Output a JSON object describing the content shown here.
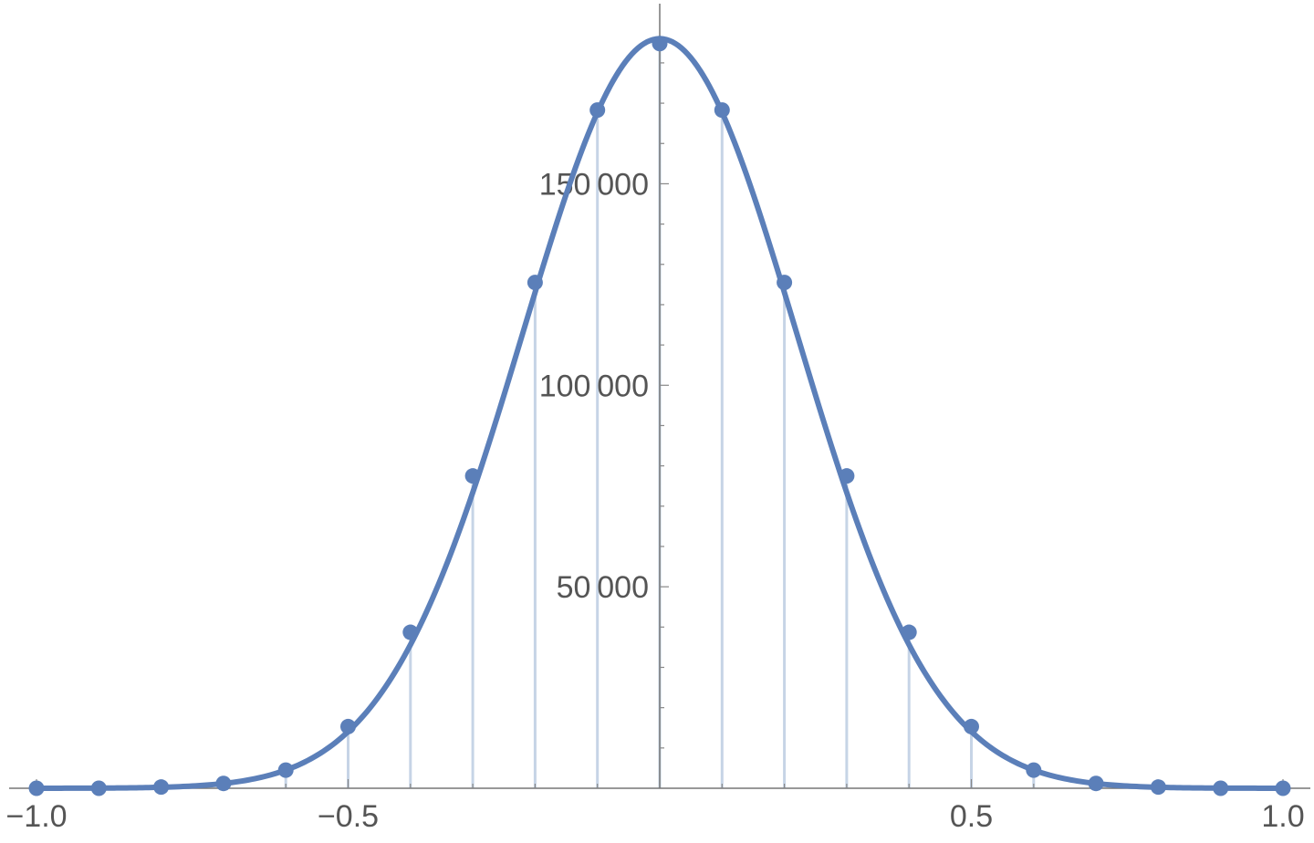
{
  "chart_data": {
    "type": "scatter",
    "title": "",
    "xlabel": "",
    "ylabel": "",
    "xlim": [
      -1.0,
      1.0
    ],
    "ylim": [
      0,
      187000
    ],
    "grid": false,
    "legend": "none",
    "x_ticks": [
      {
        "value": -1.0,
        "label": "−1.0"
      },
      {
        "value": -0.5,
        "label": "−0.5"
      },
      {
        "value": 0.5,
        "label": "0.5"
      },
      {
        "value": 1.0,
        "label": "1.0"
      }
    ],
    "y_ticks": [
      {
        "value": 50000,
        "label": "50 000"
      },
      {
        "value": 100000,
        "label": "100 000"
      },
      {
        "value": 150000,
        "label": "150 000"
      }
    ],
    "color": "#5b7fb9",
    "stem_color": "#c6d4e6",
    "points": {
      "x": [
        -1.0,
        -0.9,
        -0.8,
        -0.7,
        -0.6,
        -0.5,
        -0.4,
        -0.3,
        -0.2,
        -0.1,
        0.0,
        0.1,
        0.2,
        0.3,
        0.4,
        0.5,
        0.6,
        0.7,
        0.8,
        0.9,
        1.0
      ],
      "y": [
        0,
        0,
        300,
        1200,
        4500,
        15300,
        38700,
        77500,
        125500,
        168300,
        184800,
        168300,
        125500,
        77500,
        38700,
        15300,
        4500,
        1200,
        300,
        0,
        0
      ]
    },
    "curve": {
      "type": "gaussian",
      "mu": 0,
      "amplitude": 186000,
      "sigma": 0.22
    }
  }
}
